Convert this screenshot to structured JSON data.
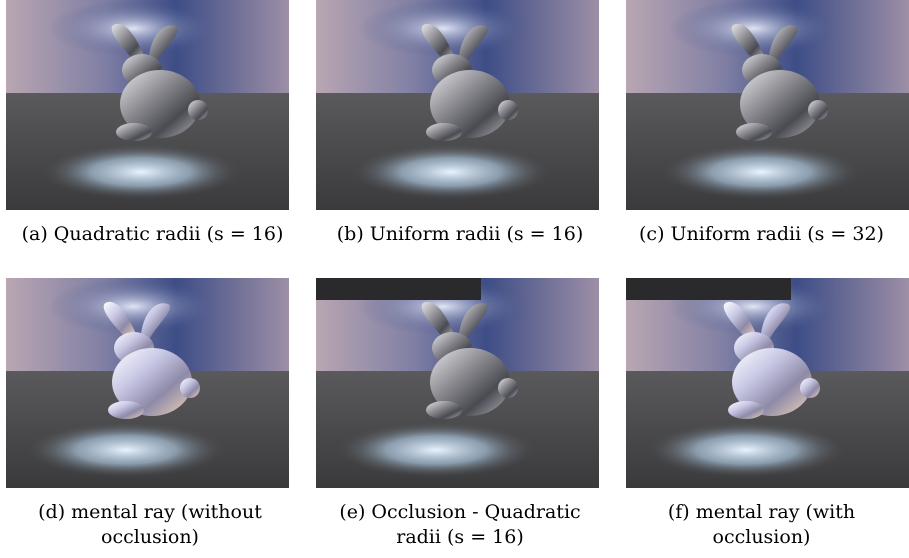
{
  "figures": [
    {
      "caption": "(a) Quadratic radii (s = 16)",
      "occluder": false,
      "tint": "silver"
    },
    {
      "caption": "(b) Uniform radii (s = 16)",
      "occluder": false,
      "tint": "silver"
    },
    {
      "caption": "(c) Uniform radii (s = 32)",
      "occluder": false,
      "tint": "silver"
    },
    {
      "caption_line1": "(d) mental ray (without",
      "caption_line2": "occlusion)",
      "occluder": false,
      "tint": "bright"
    },
    {
      "caption_line1": "(e) Occlusion - Quadratic",
      "caption_line2": "radii (s = 16)",
      "occluder": true,
      "tint": "silver"
    },
    {
      "caption_line1": "(f) mental ray (with",
      "caption_line2": "occlusion)",
      "occluder": true,
      "tint": "bright"
    }
  ]
}
